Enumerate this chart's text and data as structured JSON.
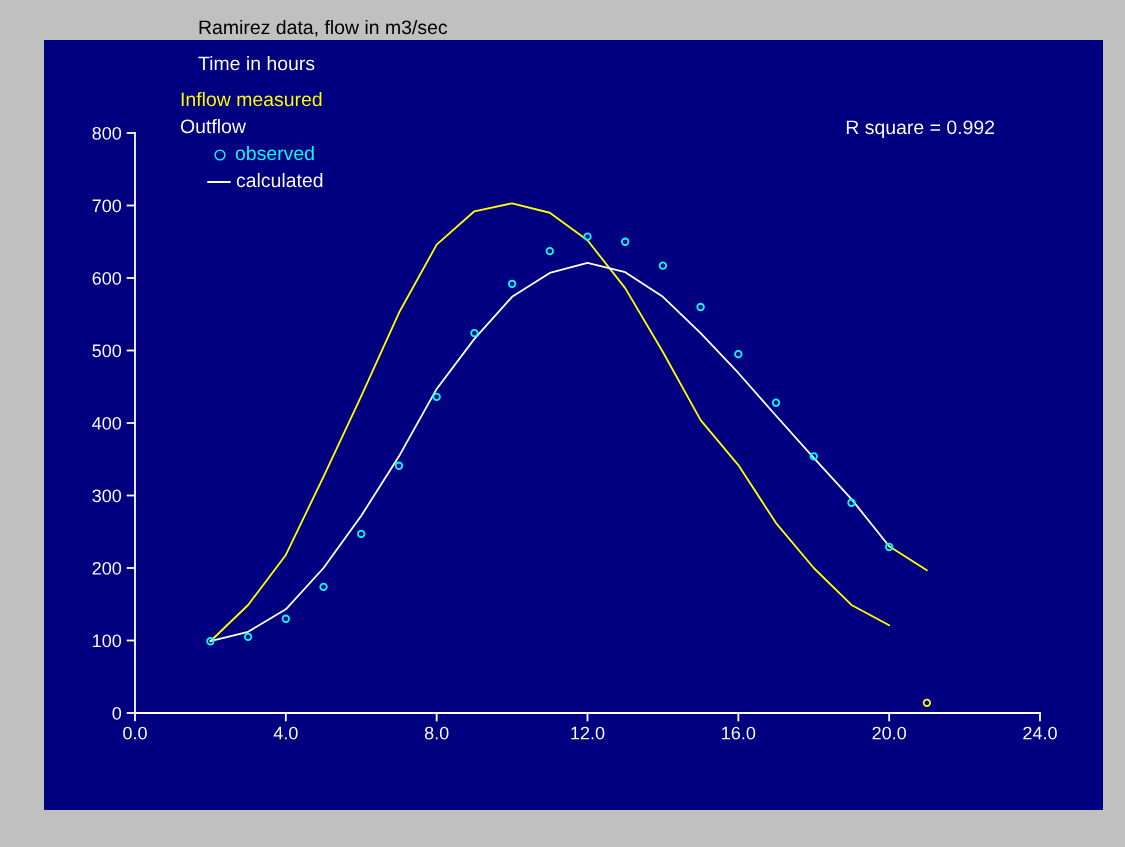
{
  "chart_data": {
    "type": "line",
    "title": "Ramirez data, flow in m3/sec",
    "xlabel": "Time in hours",
    "legend_title": "Outflow",
    "annotations": [
      "R square = 0.992"
    ],
    "xlim": [
      0,
      24
    ],
    "xticks": [
      {
        "value": 0,
        "label": "0.0"
      },
      {
        "value": 4,
        "label": "4.0"
      },
      {
        "value": 8,
        "label": "8.0"
      },
      {
        "value": 12,
        "label": "12.0"
      },
      {
        "value": 16,
        "label": "16.0"
      },
      {
        "value": 20,
        "label": "20.0"
      },
      {
        "value": 24,
        "label": "24.0"
      }
    ],
    "ylim": [
      0,
      800
    ],
    "yticks": [
      0,
      100,
      200,
      300,
      400,
      500,
      600,
      700,
      800
    ],
    "grid": false,
    "legend": "top left",
    "series": [
      {
        "name": "Inflow measured",
        "color": "#ffff00",
        "x": [
          2,
          3,
          4,
          5,
          6,
          7,
          8,
          9,
          10,
          11,
          12,
          13,
          14,
          15,
          16,
          17,
          18,
          19,
          20
        ],
        "values": [
          99,
          149,
          218,
          326,
          437,
          552,
          646,
          692,
          703,
          690,
          652,
          586,
          498,
          404,
          342,
          262,
          200,
          149,
          121
        ]
      },
      {
        "name": "observed",
        "type": "scatter",
        "marker": "circle",
        "color": "#00ffff",
        "x": [
          2,
          3,
          4,
          5,
          6,
          7,
          8,
          9,
          10,
          11,
          12,
          13,
          14,
          15,
          16,
          17,
          18,
          19,
          20
        ],
        "values": [
          99,
          105,
          130,
          174,
          247,
          341,
          436,
          524,
          592,
          637,
          657,
          650,
          617,
          560,
          495,
          428,
          354,
          290,
          229
        ]
      },
      {
        "name": "calculated",
        "color": "#ffffff",
        "x": [
          2,
          3,
          4,
          5,
          6,
          7,
          8,
          9,
          10,
          11,
          12,
          13,
          14,
          15,
          16,
          17,
          18,
          19,
          20
        ],
        "values": [
          99,
          112,
          143,
          200,
          272,
          354,
          447,
          516,
          574,
          607,
          621,
          608,
          574,
          524,
          469,
          410,
          352,
          295,
          230
        ]
      },
      {
        "color": "#ffff00",
        "x": [
          20,
          21
        ],
        "values": [
          230,
          197
        ]
      },
      {
        "type": "scatter",
        "marker": "circle",
        "color": "#ffff00",
        "x": [
          21
        ],
        "values": [
          14
        ]
      }
    ]
  }
}
